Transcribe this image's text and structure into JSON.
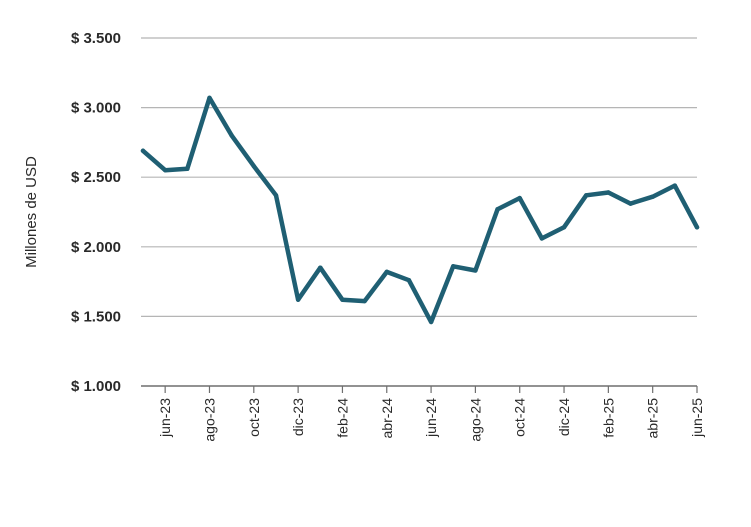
{
  "chart_data": {
    "type": "line",
    "title": "",
    "xlabel": "",
    "ylabel": "Millones de USD",
    "ylim": [
      1000,
      3500
    ],
    "yticks": [
      1000,
      1500,
      2000,
      2500,
      3000,
      3500
    ],
    "ytick_labels": [
      "$ 1.000",
      "$ 1.500",
      "$ 2.000",
      "$ 2.500",
      "$ 3.000",
      "$ 3.500"
    ],
    "x": [
      "may-23",
      "jun-23",
      "jul-23",
      "ago-23",
      "sep-23",
      "oct-23",
      "nov-23",
      "dic-23",
      "ene-24",
      "feb-24",
      "mar-24",
      "abr-24",
      "may-24",
      "jun-24",
      "jul-24",
      "ago-24",
      "sep-24",
      "oct-24",
      "nov-24",
      "dic-24",
      "ene-25",
      "feb-25",
      "mar-25",
      "abr-25",
      "may-25",
      "jun-25"
    ],
    "xtick_labels": [
      "jun-23",
      "ago-23",
      "oct-23",
      "dic-23",
      "feb-24",
      "abr-24",
      "jun-24",
      "ago-24",
      "oct-24",
      "dic-24",
      "feb-25",
      "abr-25",
      "jun-25"
    ],
    "series": [
      {
        "values": [
          2690,
          2550,
          2560,
          3070,
          2800,
          2580,
          2370,
          1620,
          1850,
          1620,
          1610,
          1820,
          1760,
          1460,
          1860,
          1830,
          2270,
          2350,
          2060,
          2140,
          2370,
          2390,
          2310,
          2360,
          2440,
          2140
        ]
      }
    ],
    "grid": true,
    "line_color": "#1f5f73",
    "grid_color": "#b5b5b5",
    "axis_color": "#6e6e6e"
  }
}
